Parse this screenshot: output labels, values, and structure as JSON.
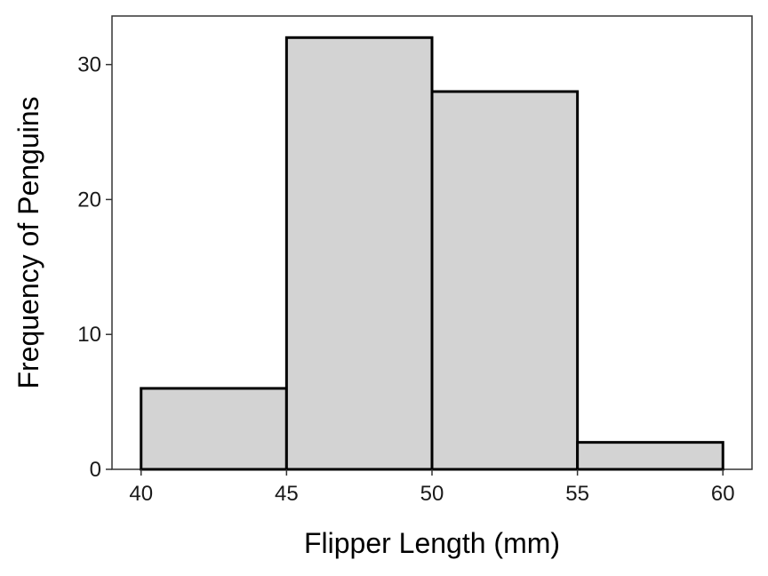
{
  "chart_data": {
    "type": "bar",
    "title": "",
    "xlabel": "Flipper Length (mm)",
    "ylabel": "Frequency of Penguins",
    "bins": [
      {
        "start": 40,
        "end": 45,
        "count": 6
      },
      {
        "start": 45,
        "end": 50,
        "count": 32
      },
      {
        "start": 50,
        "end": 55,
        "count": 28
      },
      {
        "start": 55,
        "end": 60,
        "count": 2
      }
    ],
    "xlim": [
      39,
      61
    ],
    "ylim": [
      0,
      33.6
    ],
    "xticks": [
      40,
      45,
      50,
      55,
      60
    ],
    "yticks": [
      0,
      10,
      20,
      30
    ],
    "grid": false,
    "legend": "none",
    "bar_fill": "#d3d3d3",
    "bar_stroke": "#000000"
  }
}
